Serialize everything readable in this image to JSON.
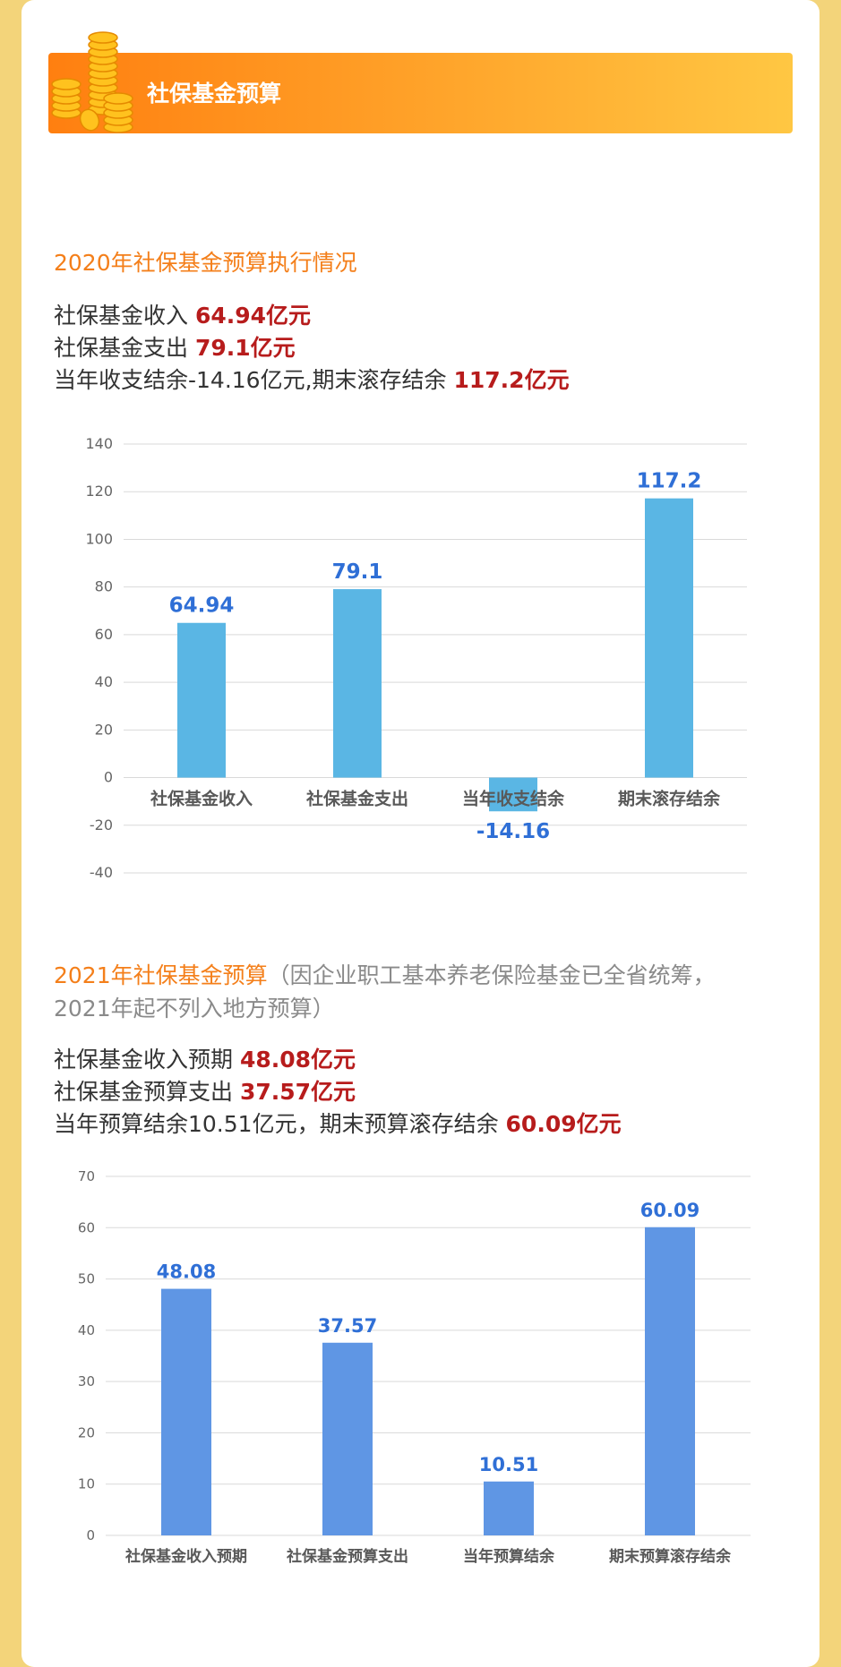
{
  "header": {
    "title": "社保基金预算"
  },
  "section2020": {
    "title": "2020年社保基金预算执行情况",
    "stats": [
      {
        "prefix": "社保基金收入 ",
        "highlight": "64.94亿元"
      },
      {
        "prefix": "社保基金支出 ",
        "highlight": "79.1亿元"
      },
      {
        "prefix": "当年收支结余-14.16亿元,期末滚存结余 ",
        "highlight": "117.2亿元"
      }
    ]
  },
  "section2021": {
    "title": "2021年社保基金预算",
    "note_line1": "（因企业职工基本养老保险基金已全省统筹，",
    "note_line2": "2021年起不列入地方预算）",
    "stats": [
      {
        "prefix": "社保基金收入预期 ",
        "highlight": "48.08亿元"
      },
      {
        "prefix": "社保基金预算支出 ",
        "highlight": "37.57亿元"
      },
      {
        "prefix": "当年预算结余10.51亿元，期末预算滚存结余 ",
        "highlight": "60.09亿元"
      }
    ]
  },
  "colors": {
    "bar2020": "#5ab6e4",
    "bar2021": "#5f96e4",
    "label": "#2f6fd6",
    "highlight": "#b71c1c",
    "title": "#f47f1a"
  },
  "chart_data": [
    {
      "type": "bar",
      "categories": [
        "社保基金收入",
        "社保基金支出",
        "当年收支结余",
        "期末滚存结余"
      ],
      "values": [
        64.94,
        79.1,
        -14.16,
        117.2
      ],
      "value_labels": [
        "64.94",
        "79.1",
        "-14.16",
        "117.2"
      ],
      "ylim": [
        -40,
        140
      ],
      "yticks": [
        140,
        120,
        100,
        80,
        60,
        40,
        20,
        0,
        -20,
        -40
      ],
      "grid": true
    },
    {
      "type": "bar",
      "categories": [
        "社保基金收入预期",
        "社保基金预算支出",
        "当年预算结余",
        "期末预算滚存结余"
      ],
      "values": [
        48.08,
        37.57,
        10.51,
        60.09
      ],
      "value_labels": [
        "48.08",
        "37.57",
        "10.51",
        "60.09"
      ],
      "ylim": [
        0,
        70
      ],
      "yticks": [
        70,
        60,
        50,
        40,
        30,
        20,
        10,
        0
      ],
      "grid": true
    }
  ]
}
